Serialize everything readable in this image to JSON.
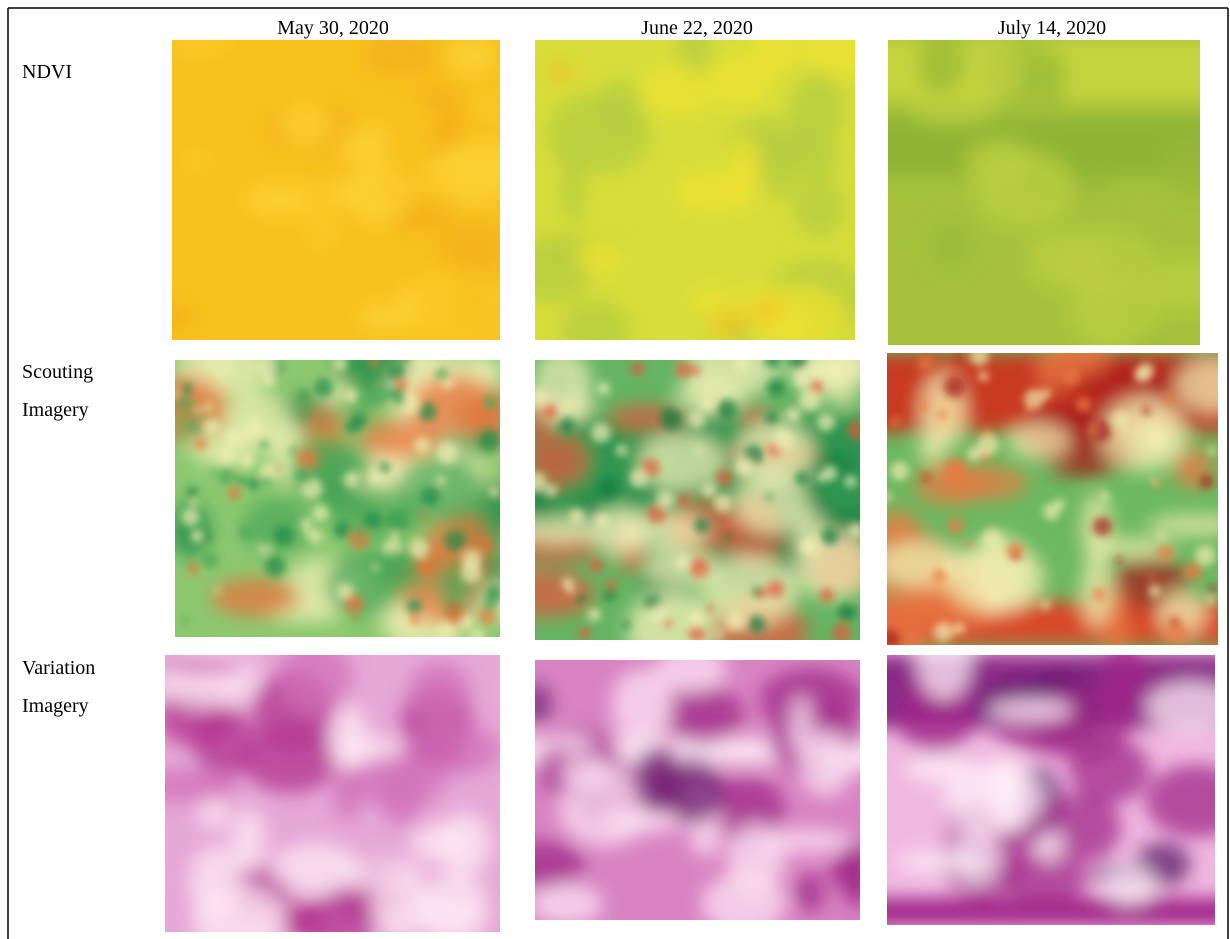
{
  "columns": [
    "May 30, 2020",
    "June 22, 2020",
    "July 14, 2020"
  ],
  "rows": [
    {
      "label": [
        "NDVI"
      ]
    },
    {
      "label": [
        "Scouting",
        "Imagery"
      ]
    },
    {
      "label": [
        "Variation",
        "Imagery"
      ]
    }
  ]
}
